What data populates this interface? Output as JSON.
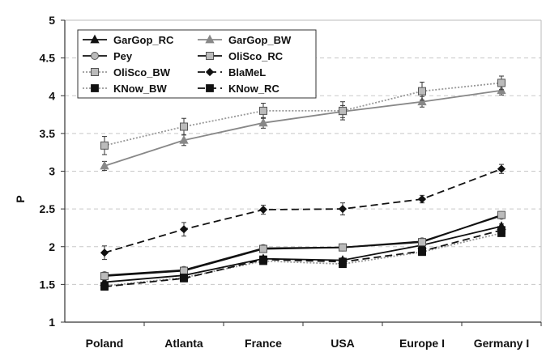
{
  "chart_data": {
    "type": "line",
    "title": "",
    "xlabel": "",
    "ylabel": "P",
    "ylim": [
      1,
      5
    ],
    "yticks": [
      "1",
      "1.5",
      "2",
      "2.5",
      "3",
      "3.5",
      "4",
      "4.5",
      "5"
    ],
    "grid": "horizontal dashed",
    "legend_position": "top-left",
    "categories": [
      "Poland",
      "Atlanta",
      "France",
      "USA",
      "Europe I",
      "Germany I"
    ],
    "series": [
      {
        "name": "GarGop_RC",
        "color": "#111111",
        "dash": "solid",
        "marker": "triangle",
        "values": [
          1.53,
          1.62,
          1.84,
          1.82,
          2.02,
          2.27
        ],
        "errors": [
          0.03,
          0.03,
          0.03,
          0.03,
          0.03,
          0.03
        ]
      },
      {
        "name": "GarGop_BW",
        "color": "#888888",
        "dash": "solid",
        "marker": "triangle",
        "values": [
          3.07,
          3.41,
          3.64,
          3.79,
          3.92,
          4.07
        ],
        "errors": [
          0.06,
          0.07,
          0.07,
          0.08,
          0.07,
          0.06
        ]
      },
      {
        "name": "Pey",
        "color": "#111111",
        "dash": "solid",
        "marker": "circle",
        "values": [
          1.62,
          1.69,
          1.98,
          1.99,
          2.07,
          2.41
        ],
        "errors": [
          0.04,
          0.04,
          0.04,
          0.03,
          0.03,
          0.03
        ]
      },
      {
        "name": "OliSco_RC",
        "color": "#111111",
        "dash": "solid",
        "marker": "square-gray",
        "values": [
          1.61,
          1.68,
          1.97,
          1.99,
          2.06,
          2.42
        ],
        "errors": [
          0.05,
          0.04,
          0.04,
          0.03,
          0.03,
          0.03
        ]
      },
      {
        "name": "OliSco_BW",
        "color": "#999999",
        "dash": "dotted",
        "marker": "square-gray",
        "values": [
          3.34,
          3.59,
          3.8,
          3.8,
          4.06,
          4.17
        ],
        "errors": [
          0.12,
          0.11,
          0.1,
          0.12,
          0.12,
          0.09
        ]
      },
      {
        "name": "BlaMeL",
        "color": "#111111",
        "dash": "dashed",
        "marker": "diamond",
        "values": [
          1.92,
          2.23,
          2.49,
          2.5,
          2.63,
          3.03
        ],
        "errors": [
          0.09,
          0.09,
          0.06,
          0.08,
          0.05,
          0.06
        ]
      },
      {
        "name": "KNow_BW",
        "color": "#999999",
        "dash": "dotted",
        "marker": "square",
        "values": [
          1.48,
          1.59,
          1.81,
          1.77,
          1.93,
          2.18
        ],
        "errors": [
          0.03,
          0.03,
          0.03,
          0.03,
          0.03,
          0.03
        ]
      },
      {
        "name": "KNow_RC",
        "color": "#111111",
        "dash": "dashed",
        "marker": "square",
        "values": [
          1.47,
          1.58,
          1.83,
          1.8,
          1.94,
          2.22
        ],
        "errors": [
          0.03,
          0.03,
          0.03,
          0.03,
          0.03,
          0.03
        ]
      }
    ]
  }
}
